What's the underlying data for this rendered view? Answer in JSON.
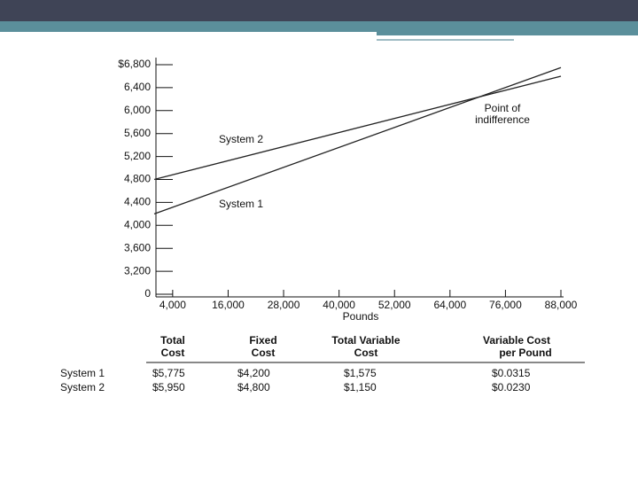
{
  "chart_data": {
    "type": "line",
    "x": [
      0,
      88000
    ],
    "series": [
      {
        "name": "System 1",
        "color": "#222222",
        "values": [
          4200,
          6750
        ]
      },
      {
        "name": "System 2",
        "color": "#222222",
        "values": [
          4800,
          6600
        ]
      }
    ],
    "annotations": [
      "Point of",
      "indifference"
    ],
    "xlabel": "Pounds",
    "xlim": [
      0,
      88000
    ],
    "xticks": [
      {
        "value": 4000,
        "label": "4,000"
      },
      {
        "value": 16000,
        "label": "16,000"
      },
      {
        "value": 28000,
        "label": "28,000"
      },
      {
        "value": 40000,
        "label": "40,000"
      },
      {
        "value": 52000,
        "label": "52,000"
      },
      {
        "value": 64000,
        "label": "64,000"
      },
      {
        "value": 76000,
        "label": "76,000"
      },
      {
        "value": 88000,
        "label": "88,000"
      }
    ],
    "ylim": [
      0,
      6800
    ],
    "yticks": [
      0,
      {
        "value": 3200,
        "label": "3,200"
      },
      {
        "value": 3600,
        "label": "3,600"
      },
      {
        "value": 4000,
        "label": "4,000"
      },
      {
        "value": 4400,
        "label": "4,400"
      },
      {
        "value": 4800,
        "label": "4,800"
      },
      {
        "value": 5200,
        "label": "5,200"
      },
      {
        "value": 5600,
        "label": "5,600"
      },
      {
        "value": 6000,
        "label": "6,000"
      },
      {
        "value": 6400,
        "label": "6,400"
      },
      {
        "value": 6800,
        "label": "$6,800"
      }
    ]
  },
  "table": {
    "header": [
      [
        "Total",
        "Cost"
      ],
      [
        "Fixed",
        "Cost"
      ],
      [
        "Total Variable",
        "Cost"
      ],
      [
        "Variable Cost",
        "per Pound"
      ]
    ],
    "rows": [
      [
        "System 1",
        "$5,775",
        "$4,200",
        "$1,575",
        "$0.0315"
      ],
      [
        "System 2",
        "$5,950",
        "$4,800",
        "$1,150",
        "$0.0230"
      ]
    ]
  }
}
